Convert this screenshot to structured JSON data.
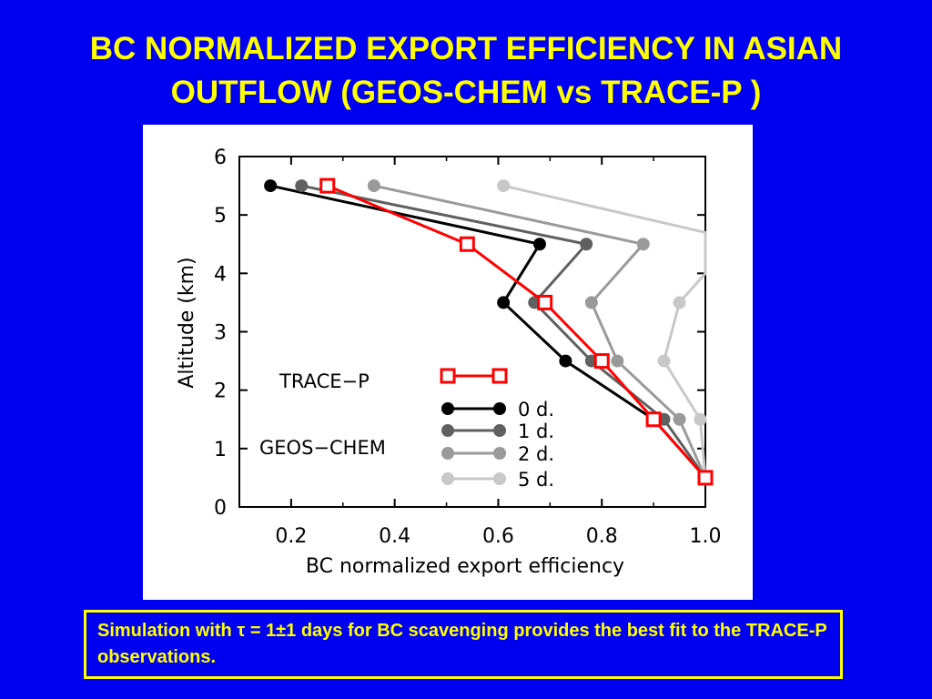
{
  "title": {
    "line1": "BC NORMALIZED EXPORT EFFICIENCY IN ASIAN",
    "line2": "OUTFLOW (GEOS-CHEM vs TRACE-P )"
  },
  "note": {
    "text": "Simulation with τ = 1±1 days for BC scavenging provides the best fit to the TRACE-P observations."
  },
  "colors": {
    "background": "#0000f0",
    "title": "#ffff00",
    "trace_p": "#ff0000",
    "d0": "#000000",
    "d1": "#606060",
    "d2": "#9a9a9a",
    "d5": "#c8c8c8"
  },
  "chart_data": {
    "type": "line",
    "xlabel": "BC normalized export efficiency",
    "ylabel": "Altitude (km)",
    "xlim": [
      0.1,
      1.0
    ],
    "ylim": [
      0,
      6
    ],
    "xticks": [
      "0.2",
      "0.4",
      "0.6",
      "0.8",
      "1.0"
    ],
    "yticks": [
      "0",
      "1",
      "2",
      "3",
      "4",
      "5",
      "6"
    ],
    "legend_group_trace": "TRACE−P",
    "legend_group_model": "GEOS−CHEM",
    "series": [
      {
        "name": "TRACE−P",
        "marker": "square",
        "color": "#ff0000",
        "points": [
          [
            0.27,
            5.5
          ],
          [
            0.54,
            4.5
          ],
          [
            0.69,
            3.5
          ],
          [
            0.8,
            2.5
          ],
          [
            0.9,
            1.5
          ],
          [
            1.0,
            0.5
          ]
        ]
      },
      {
        "name": "0 d.",
        "marker": "circle",
        "color": "#000000",
        "points": [
          [
            0.16,
            5.5
          ],
          [
            0.68,
            4.5
          ],
          [
            0.61,
            3.5
          ],
          [
            0.73,
            2.5
          ],
          [
            0.9,
            1.5
          ],
          [
            1.0,
            0.5
          ]
        ]
      },
      {
        "name": "1 d.",
        "marker": "circle",
        "color": "#606060",
        "points": [
          [
            0.22,
            5.5
          ],
          [
            0.77,
            4.5
          ],
          [
            0.67,
            3.5
          ],
          [
            0.78,
            2.5
          ],
          [
            0.92,
            1.5
          ],
          [
            1.0,
            0.5
          ]
        ]
      },
      {
        "name": "2 d.",
        "marker": "circle",
        "color": "#9a9a9a",
        "points": [
          [
            0.36,
            5.5
          ],
          [
            0.88,
            4.5
          ],
          [
            0.78,
            3.5
          ],
          [
            0.83,
            2.5
          ],
          [
            0.95,
            1.5
          ],
          [
            1.0,
            0.5
          ]
        ]
      },
      {
        "name": "5 d.",
        "marker": "circle",
        "color": "#c8c8c8",
        "points": [
          [
            0.61,
            5.5
          ],
          [
            1.0,
            4.7
          ],
          [
            1.0,
            4.0
          ],
          [
            0.95,
            3.5
          ],
          [
            0.92,
            2.5
          ],
          [
            0.99,
            1.5
          ],
          [
            1.0,
            0.5
          ]
        ]
      }
    ]
  }
}
